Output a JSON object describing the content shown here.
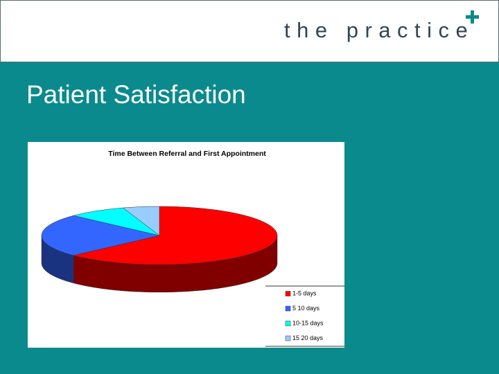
{
  "header": {
    "logo": "the practice"
  },
  "slide_title": "Patient Satisfaction",
  "chart_data": {
    "type": "pie3d",
    "title": "Time Between Referral and First Appointment",
    "categories": [
      "1-5 days",
      "5 10 days",
      "10-15 days",
      "15 20 days"
    ],
    "values": [
      63,
      24,
      8,
      5
    ],
    "colors": [
      "#ff0000",
      "#3366ff",
      "#00ffff",
      "#99ccff"
    ],
    "legend": "bottom-right"
  }
}
